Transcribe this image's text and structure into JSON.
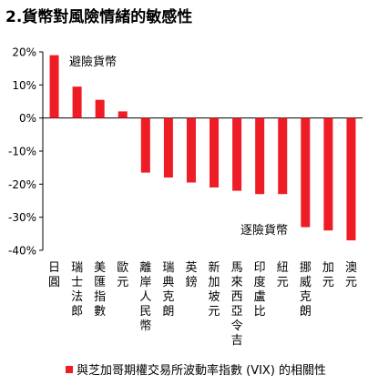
{
  "title": "2.貨幣對風險情緒的敏感性",
  "chart_data": {
    "type": "bar",
    "title": "2.貨幣對風險情緒的敏感性",
    "categories": [
      "日圓",
      "瑞士法郎",
      "美匯指數",
      "歐元",
      "離岸人民幣",
      "瑞典克朗",
      "英鎊",
      "新加坡元",
      "馬來西亞令吉",
      "印度盧比",
      "紐元",
      "挪威克朗",
      "加元",
      "澳元"
    ],
    "series": [
      {
        "name": "與芝加哥期權交易所波動率指數 (VIX) 的相關性",
        "values": [
          19,
          9.5,
          5.5,
          2,
          -16.5,
          -18,
          -19.5,
          -21,
          -22,
          -23,
          -23,
          -33,
          -34,
          -37
        ]
      }
    ],
    "yticks": [
      "20%",
      "10%",
      "0%",
      "-10%",
      "-20%",
      "-30%",
      "-40%"
    ],
    "ylim": [
      -40,
      20
    ],
    "annotations": [
      "避險貨幣",
      "逐險貨幣"
    ],
    "grid": false,
    "legend_position": "bottom",
    "bar_color": "#ee1c25"
  }
}
